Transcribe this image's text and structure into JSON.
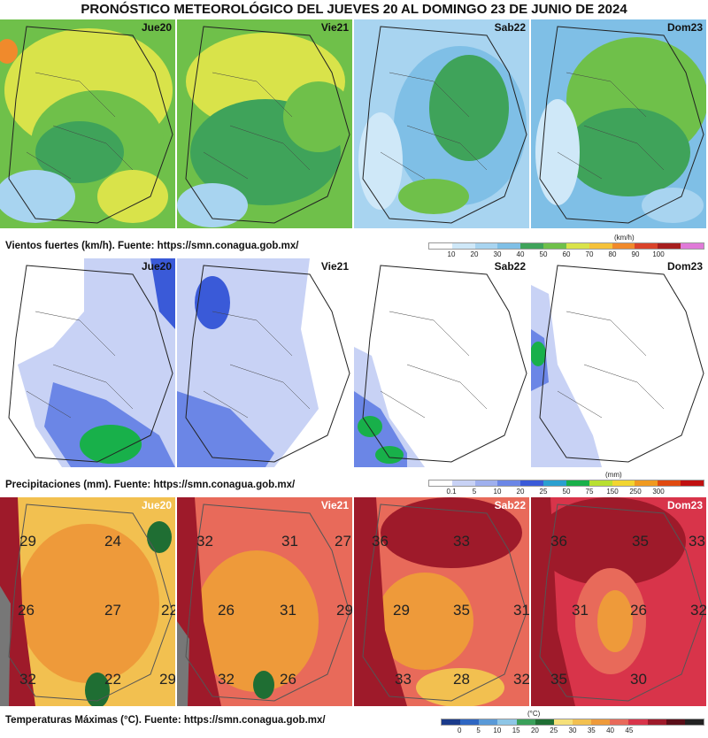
{
  "title": "PRONÓSTICO METEOROLÓGICO DEL JUEVES 20 AL DOMINGO 23 DE JUNIO DE 2024",
  "days": [
    "Jue20",
    "Vie21",
    "Sab22",
    "Dom23"
  ],
  "wind": {
    "caption": "Vientos fuertes (km/h).  Fuente: https://smn.conagua.gob.mx/",
    "unit": "(km/h)",
    "ticks": [
      "10",
      "20",
      "30",
      "40",
      "50",
      "60",
      "70",
      "80",
      "90",
      "100"
    ],
    "colors": [
      "#ffffff",
      "#cfe8f8",
      "#a8d4f0",
      "#7fbfe6",
      "#3fa35a",
      "#6fc04a",
      "#d9e34a",
      "#f5c23a",
      "#f08a2c",
      "#d9432a",
      "#a61e1e",
      "#e07ad8"
    ]
  },
  "rain": {
    "caption": "Precipitaciones (mm).  Fuente: https://smn.conagua.gob.mx/",
    "unit": "(mm)",
    "ticks": [
      "0.1",
      "5",
      "10",
      "20",
      "25",
      "50",
      "75",
      "150",
      "250",
      "300"
    ],
    "colors": [
      "#ffffff",
      "#c8d2f5",
      "#9fb0ee",
      "#6b86e6",
      "#3a5ad8",
      "#2aa0d0",
      "#18b04a",
      "#b8e030",
      "#f2d530",
      "#f09a20",
      "#e04a10",
      "#c01010"
    ]
  },
  "temp": {
    "caption": "Temperaturas Máximas (°C).  Fuente: https://smn.conagua.gob.mx/",
    "unit": "(°C)",
    "ticks": [
      "0",
      "5",
      "10",
      "15",
      "20",
      "25",
      "30",
      "35",
      "40",
      "45"
    ],
    "colors": [
      "#1a3a8a",
      "#2e66c2",
      "#5a9ad8",
      "#8ec6e6",
      "#3aa05a",
      "#1f6e33",
      "#f5e07a",
      "#f2c050",
      "#ee9a3a",
      "#e86a5a",
      "#d8344a",
      "#9e1a2a",
      "#5a0e18",
      "#222222"
    ],
    "labels": [
      [
        "29",
        "24",
        "26",
        "27",
        "22",
        "32",
        "22",
        "29"
      ],
      [
        "32",
        "31",
        "27",
        "26",
        "31",
        "29",
        "32",
        "26"
      ],
      [
        "36",
        "33",
        "29",
        "35",
        "33",
        "28",
        "32",
        "31"
      ],
      [
        "36",
        "35",
        "33",
        "31",
        "26",
        "32",
        "35",
        "30"
      ]
    ]
  }
}
